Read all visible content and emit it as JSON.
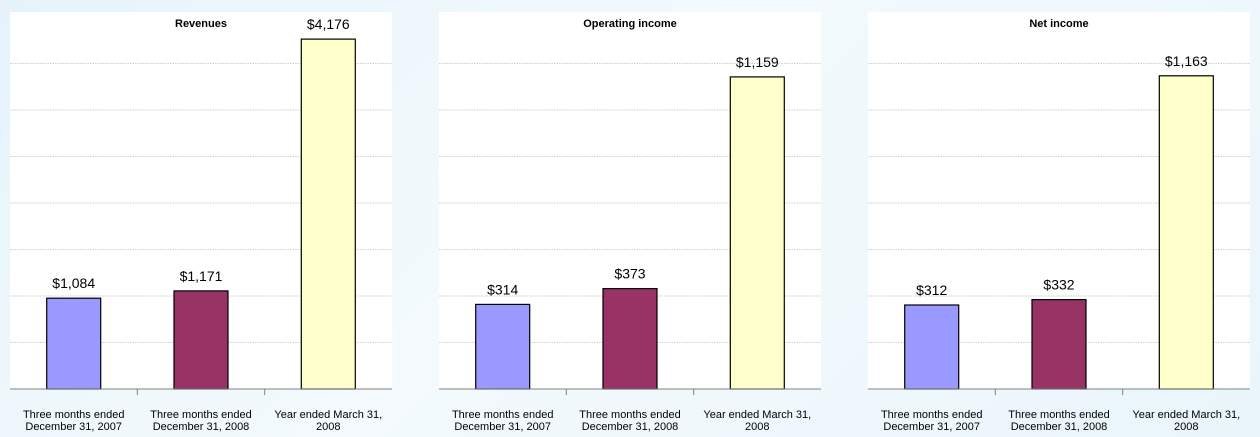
{
  "colors": {
    "bar_1": "#9999ff",
    "bar_2": "#993366",
    "bar_3": "#ffffcc",
    "plot_background": "#ffffff",
    "gridline": "#a0a0a0",
    "axis": "#808080"
  },
  "chart_data": [
    {
      "type": "bar",
      "title": "Revenues",
      "categories": [
        [
          "Three months ended",
          "December 31, 2007"
        ],
        [
          "Three months ended",
          "December 31, 2008"
        ],
        [
          "Year ended March 31,",
          "2008"
        ]
      ],
      "values": [
        1084,
        1171,
        4176
      ],
      "value_labels": [
        "$1,084",
        "$1,171",
        "$4,176"
      ],
      "ylim": [
        0,
        4500
      ],
      "grid": true,
      "legend": "none"
    },
    {
      "type": "bar",
      "title": "Operating income",
      "categories": [
        [
          "Three months ended",
          "December 31, 2007"
        ],
        [
          "Three months ended",
          "December 31, 2008"
        ],
        [
          "Year ended March 31,",
          "2008"
        ]
      ],
      "values": [
        314,
        373,
        1159
      ],
      "value_labels": [
        "$314",
        "$373",
        "$1,159"
      ],
      "ylim": [
        0,
        1400
      ],
      "grid": true,
      "legend": "none"
    },
    {
      "type": "bar",
      "title": "Net income",
      "categories": [
        [
          "Three months ended",
          "December 31, 2007"
        ],
        [
          "Three months ended",
          "December 31, 2008"
        ],
        [
          "Year ended March 31,",
          "2008"
        ]
      ],
      "values": [
        312,
        332,
        1163
      ],
      "value_labels": [
        "$312",
        "$332",
        "$1,163"
      ],
      "ylim": [
        0,
        1400
      ],
      "grid": true,
      "legend": "none"
    }
  ]
}
